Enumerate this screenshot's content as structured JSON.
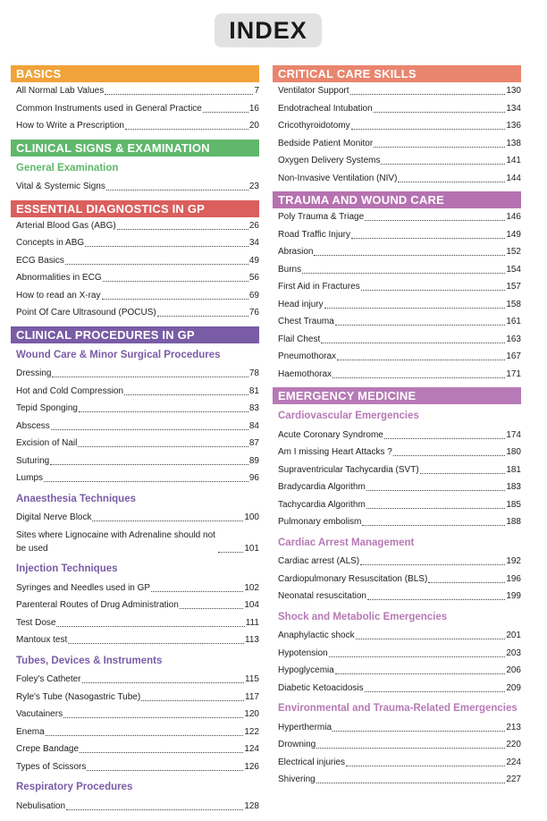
{
  "title": "INDEX",
  "columns": [
    {
      "sections": [
        {
          "heading": "BASICS",
          "color": "#f0a33a",
          "groups": [
            {
              "entries": [
                {
                  "title": "All Normal Lab Values",
                  "page": 7
                },
                {
                  "title": "Common Instruments used in General Practice",
                  "page": 16
                },
                {
                  "title": "How to Write a Prescription",
                  "page": 20
                }
              ]
            }
          ]
        },
        {
          "heading": "CLINICAL SIGNS & EXAMINATION",
          "color": "#5fb86b",
          "groups": [
            {
              "subheading": "General Examination",
              "entries": [
                {
                  "title": "Vital & Systemic Signs",
                  "page": 23
                }
              ]
            }
          ]
        },
        {
          "heading": "ESSENTIAL DIAGNOSTICS IN GP",
          "color": "#da5f5d",
          "groups": [
            {
              "entries": [
                {
                  "title": "Arterial Blood Gas (ABG)",
                  "page": 26
                },
                {
                  "title": "Concepts in ABG",
                  "page": 34
                },
                {
                  "title": "ECG Basics",
                  "page": 49
                },
                {
                  "title": "Abnormalities in ECG",
                  "page": 56
                },
                {
                  "title": "How to read an X-ray",
                  "page": 69
                },
                {
                  "title": "Point Of Care Ultrasound (POCUS)",
                  "page": 76
                }
              ]
            }
          ]
        },
        {
          "heading": "CLINICAL PROCEDURES IN GP",
          "color": "#7a5ca6",
          "groups": [
            {
              "subheading": "Wound Care & Minor Surgical Procedures",
              "entries": [
                {
                  "title": "Dressing",
                  "page": 78
                },
                {
                  "title": "Hot and Cold Compression",
                  "page": 81
                },
                {
                  "title": "Tepid Sponging",
                  "page": 83
                },
                {
                  "title": "Abscess",
                  "page": 84
                },
                {
                  "title": "Excision of Nail",
                  "page": 87
                },
                {
                  "title": "Suturing",
                  "page": 89
                },
                {
                  "title": "Lumps",
                  "page": 96
                }
              ]
            },
            {
              "subheading": "Anaesthesia Techniques",
              "entries": [
                {
                  "title": "Digital Nerve Block",
                  "page": 100
                },
                {
                  "title": "Sites where Lignocaine with Adrenaline should not be used",
                  "page": 101
                }
              ]
            },
            {
              "subheading": "Injection Techniques",
              "entries": [
                {
                  "title": "Syringes and Needles used in GP",
                  "page": 102
                },
                {
                  "title": "Parenteral Routes of Drug Administration",
                  "page": 104
                },
                {
                  "title": "Test Dose",
                  "page": 111
                },
                {
                  "title": "Mantoux test",
                  "page": 113
                }
              ]
            },
            {
              "subheading": "Tubes, Devices & Instruments",
              "entries": [
                {
                  "title": "Foley's Catheter",
                  "page": 115
                },
                {
                  "title": "Ryle's Tube (Nasogastric Tube)",
                  "page": 117
                },
                {
                  "title": "Vacutainers",
                  "page": 120
                },
                {
                  "title": "Enema",
                  "page": 122
                },
                {
                  "title": "Crepe Bandage",
                  "page": 124
                },
                {
                  "title": "Types of Scissors",
                  "page": 126
                }
              ]
            },
            {
              "subheading": "Respiratory Procedures",
              "entries": [
                {
                  "title": "Nebulisation",
                  "page": 128
                }
              ]
            }
          ]
        }
      ]
    },
    {
      "sections": [
        {
          "heading": "CRITICAL CARE SKILLS",
          "color": "#e9856e",
          "groups": [
            {
              "entries": [
                {
                  "title": "Ventilator Support",
                  "page": 130
                },
                {
                  "title": "Endotracheal Intubation",
                  "page": 134
                },
                {
                  "title": "Cricothyroidotomy",
                  "page": 136
                },
                {
                  "title": "Bedside Patient Monitor",
                  "page": 138
                },
                {
                  "title": "Oxygen Delivery Systems",
                  "page": 141
                },
                {
                  "title": "Non-Invasive Ventilation (NIV)",
                  "page": 144
                }
              ]
            }
          ]
        },
        {
          "heading": "TRAUMA AND WOUND CARE",
          "color": "#b672b0",
          "groups": [
            {
              "entries": [
                {
                  "title": "Poly Trauma & Triage",
                  "page": 146
                },
                {
                  "title": "Road Traffic Injury",
                  "page": 149
                },
                {
                  "title": "Abrasion",
                  "page": 152
                },
                {
                  "title": "Burns",
                  "page": 154
                },
                {
                  "title": "First Aid in Fractures",
                  "page": 157
                },
                {
                  "title": "Head injury",
                  "page": 158
                },
                {
                  "title": "Chest Trauma",
                  "page": 161
                },
                {
                  "title": "Flail Chest",
                  "page": 163
                },
                {
                  "title": "Pneumothorax",
                  "page": 167
                },
                {
                  "title": "Haemothorax",
                  "page": 171
                }
              ]
            }
          ]
        },
        {
          "heading": "EMERGENCY MEDICINE",
          "color": "#b77ab6",
          "groups": [
            {
              "subheading": "Cardiovascular Emergencies",
              "entries": [
                {
                  "title": "Acute Coronary Syndrome",
                  "page": 174
                },
                {
                  "title": "Am I missing Heart Attacks ?",
                  "page": 180
                },
                {
                  "title": "Supraventricular Tachycardia (SVT)",
                  "page": 181
                },
                {
                  "title": "Bradycardia Algorithm",
                  "page": 183
                },
                {
                  "title": "Tachycardia Algorithm",
                  "page": 185
                },
                {
                  "title": "Pulmonary embolism",
                  "page": 188
                }
              ]
            },
            {
              "subheading": "Cardiac Arrest Management",
              "entries": [
                {
                  "title": "Cardiac arrest (ALS)",
                  "page": 192
                },
                {
                  "title": "Cardiopulmonary Resuscitation (BLS)",
                  "page": 196
                },
                {
                  "title": "Neonatal resuscitation",
                  "page": 199
                }
              ]
            },
            {
              "subheading": "Shock and Metabolic Emergencies",
              "entries": [
                {
                  "title": "Anaphylactic shock",
                  "page": 201
                },
                {
                  "title": "Hypotension",
                  "page": 203
                },
                {
                  "title": "Hypoglycemia",
                  "page": 206
                },
                {
                  "title": "Diabetic Ketoacidosis",
                  "page": 209
                }
              ]
            },
            {
              "subheading": "Environmental and Trauma-Related Emergencies",
              "entries": [
                {
                  "title": "Hyperthermia",
                  "page": 213
                },
                {
                  "title": "Drowning",
                  "page": 220
                },
                {
                  "title": "Electrical injuries",
                  "page": 224
                },
                {
                  "title": "Shivering",
                  "page": 227
                }
              ]
            }
          ]
        }
      ]
    }
  ]
}
